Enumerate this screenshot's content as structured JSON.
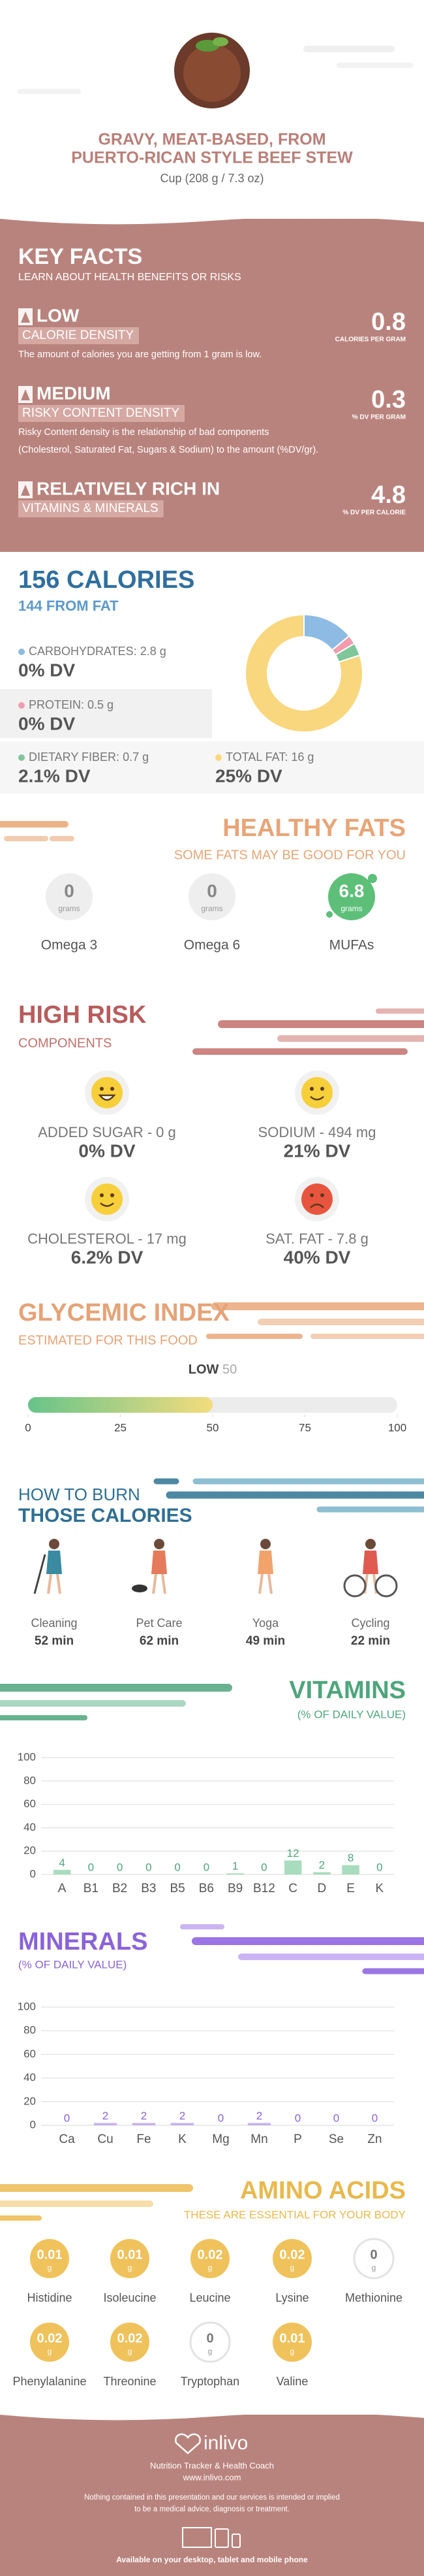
{
  "header": {
    "title_lines": [
      "GRAVY, MEAT-BASED, FROM",
      "PUERTO-RICAN STYLE BEEF STEW"
    ],
    "serving": "Cup (208 g / 7.3 oz)"
  },
  "key_facts": {
    "title": "KEY FACTS",
    "subtitle": "LEARN ABOUT HEALTH BENEFITS OR RISKS",
    "items": [
      {
        "level": "LOW",
        "label": "CALORIE DENSITY",
        "value": 0.8,
        "unit": "CALORIES PER GRAM",
        "description": [
          "The amount of calories you are getting from 1 gram is low."
        ]
      },
      {
        "level": "MEDIUM",
        "label": "RISKY CONTENT DENSITY",
        "value": 0.3,
        "unit": "% DV PER GRAM",
        "description": [
          "Risky Content density is the relationship of bad components",
          "(Cholesterol, Saturated Fat, Sugars & Sodium) to the amount (%DV/gr)."
        ]
      },
      {
        "level": "RELATIVELY RICH IN",
        "label": "VITAMINS & MINERALS",
        "value": 4.8,
        "unit": "% DV PER CALORIE"
      }
    ]
  },
  "calories": {
    "title": "156 CALORIES",
    "subtitle": "144 FROM FAT"
  },
  "chart_data": [
    {
      "type": "pie",
      "categories": [
        "CARBOHYDRATES:",
        "PROTEIN:",
        "DIETARY FIBER:",
        "TOTAL FAT:"
      ],
      "values": [
        2.8,
        0.5,
        0.7,
        16
      ],
      "value_labels": [
        "2.8 g",
        "0.5 g",
        "0.7 g",
        "16 g"
      ],
      "dv_labels": [
        "0% DV",
        "0% DV",
        "2.1% DV",
        "25% DV"
      ],
      "colors": [
        "#8dbbe3",
        "#f29cb0",
        "#7fc79a",
        "#f9d77e"
      ]
    },
    {
      "type": "bar",
      "title": "VITAMINS",
      "subtitle": "(% OF DAILY VALUE)",
      "categories": [
        "A",
        "B1",
        "B2",
        "B3",
        "B5",
        "B6",
        "B9",
        "B12",
        "C",
        "D",
        "E",
        "K"
      ],
      "values": [
        4,
        0,
        0,
        0,
        0,
        0,
        1,
        0,
        12,
        2,
        8,
        0
      ],
      "color": "#a9dcbf",
      "label_color": "#4fa57c",
      "ylim": [
        0,
        100
      ],
      "yticks": [
        0,
        20,
        40,
        60,
        80,
        100
      ],
      "grid": true
    },
    {
      "type": "bar",
      "title": "MINERALS",
      "subtitle": "(% OF DAILY VALUE)",
      "categories": [
        "Ca",
        "Cu",
        "Fe",
        "K",
        "Mg",
        "Mn",
        "P",
        "Se",
        "Zn"
      ],
      "values": [
        0,
        2,
        2,
        2,
        0,
        2,
        0,
        0,
        0
      ],
      "color": "#c6b3f0",
      "label_color": "#8a63d8",
      "ylim": [
        0,
        100
      ],
      "yticks": [
        0,
        20,
        40,
        60,
        80,
        100
      ],
      "grid": true
    }
  ],
  "healthy_fats": {
    "title": "HEALTHY FATS",
    "subtitle": "SOME FATS MAY BE GOOD FOR YOU",
    "unit": "grams",
    "items": [
      {
        "name": "Omega 3",
        "value": 0
      },
      {
        "name": "Omega 6",
        "value": 0
      },
      {
        "name": "MUFAs",
        "value": 6.8
      }
    ]
  },
  "high_risk": {
    "title": "HIGH RISK",
    "subtitle": "COMPONENTS",
    "items": [
      {
        "label": "ADDED SUGAR - 0 g",
        "dv": "0% DV"
      },
      {
        "label": "SODIUM - 494 mg",
        "dv": "21% DV"
      },
      {
        "label": "CHOLESTEROL - 17 mg",
        "dv": "6.2% DV"
      },
      {
        "label": "SAT. FAT - 7.8 g",
        "dv": "40% DV"
      }
    ]
  },
  "glycemic": {
    "title": "GLYCEMIC INDEX",
    "subtitle": "ESTIMATED FOR THIS FOOD",
    "level": "LOW",
    "value": 50,
    "xlim": [
      0,
      100
    ],
    "xticks": [
      0,
      25,
      50,
      75,
      100
    ]
  },
  "burn": {
    "title_lines": [
      "HOW TO BURN",
      "THOSE CALORIES"
    ],
    "activities": [
      {
        "name": "Cleaning",
        "time": "52 min"
      },
      {
        "name": "Pet Care",
        "time": "62 min"
      },
      {
        "name": "Yoga",
        "time": "49 min"
      },
      {
        "name": "Cycling",
        "time": "22 min"
      }
    ]
  },
  "amino_acids": {
    "title": "AMINO ACIDS",
    "subtitle": "THESE ARE ESSENTIAL FOR YOUR BODY",
    "unit": "g",
    "items": [
      {
        "name": "Histidine",
        "value": 0.01
      },
      {
        "name": "Isoleucine",
        "value": 0.01
      },
      {
        "name": "Leucine",
        "value": 0.02
      },
      {
        "name": "Lysine",
        "value": 0.02
      },
      {
        "name": "Methionine",
        "value": 0
      },
      {
        "name": "Phenylalanine",
        "value": 0.02
      },
      {
        "name": "Threonine",
        "value": 0.02
      },
      {
        "name": "Tryptophan",
        "value": 0
      },
      {
        "name": "Valine",
        "value": 0.01
      }
    ]
  },
  "footer": {
    "brand": "inlivo",
    "tagline": "Nutrition Tracker & Health Coach",
    "url": "www.inlivo.com",
    "disclaimer": [
      "Nothing contained in this presentation and our services is intended or implied",
      "to be a medical advice, diagnosis or treatment."
    ],
    "availability": "Available on your desktop, tablet and mobile phone"
  }
}
